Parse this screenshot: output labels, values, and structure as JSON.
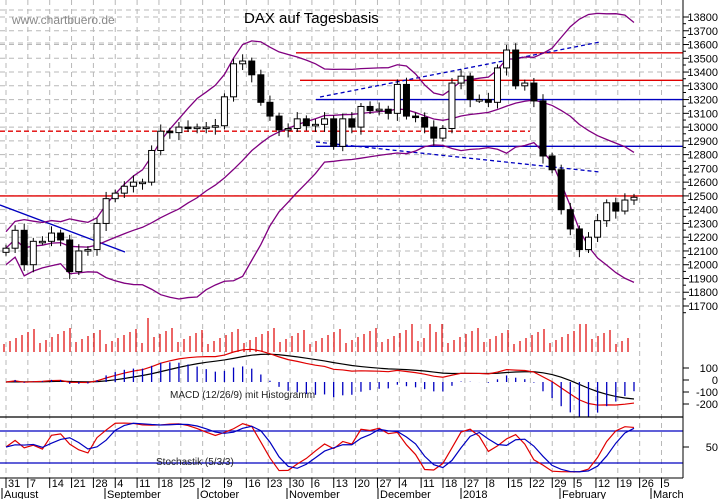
{
  "watermark": "www.chartbuero.de",
  "title": "DAX auf Tagesbasis",
  "chart_data": [
    {
      "type": "candlestick",
      "title": "DAX auf Tagesbasis",
      "ylabel": "",
      "ylim": [
        11650,
        13900
      ],
      "yticks": [
        13800,
        13700,
        13600,
        13500,
        13400,
        13300,
        13200,
        13100,
        13000,
        12900,
        12800,
        12700,
        12600,
        12500,
        12400,
        12300,
        12200,
        12100,
        12000,
        11900,
        11800,
        11700
      ],
      "overlays": [
        "Bollinger Bands (upper, middle, lower)"
      ],
      "horizontal_lines": [
        {
          "level": 13540,
          "color": "#e00000",
          "style": "solid"
        },
        {
          "level": 13340,
          "color": "#e00000",
          "style": "solid"
        },
        {
          "level": 13200,
          "color": "#0000c0",
          "style": "solid"
        },
        {
          "level": 12970,
          "color": "#e00000",
          "style": "dashed"
        },
        {
          "level": 12860,
          "color": "#0000c0",
          "style": "solid"
        },
        {
          "level": 12500,
          "color": "#e00000",
          "style": "solid"
        }
      ],
      "trend_lines": [
        {
          "name": "downtrend August-September",
          "color": "#0000c0",
          "from": [
            "Jul 31",
            12500
          ],
          "to": [
            "Sep 8",
            12160
          ]
        },
        {
          "name": "upper channel Nov-Jan",
          "color": "#0000c0",
          "style": "dashed",
          "from": [
            "Nov 13",
            13200
          ],
          "to": [
            "Jan 26",
            13600
          ]
        },
        {
          "name": "lower channel Nov-Feb",
          "color": "#0000c0",
          "style": "dashed",
          "from": [
            "Nov 13",
            12860
          ],
          "to": [
            "Feb 9",
            12640
          ]
        }
      ],
      "approx_closes": [
        {
          "date": "Jul 31",
          "close": 12120
        },
        {
          "date": "Aug 7",
          "close": 12250
        },
        {
          "date": "Aug 11",
          "close": 12000
        },
        {
          "date": "Aug 14",
          "close": 12170
        },
        {
          "date": "Aug 18",
          "close": 12170
        },
        {
          "date": "Aug 21",
          "close": 12230
        },
        {
          "date": "Aug 25",
          "close": 12180
        },
        {
          "date": "Aug 29",
          "close": 11950
        },
        {
          "date": "Sep 1",
          "close": 12100
        },
        {
          "date": "Sep 4",
          "close": 12110
        },
        {
          "date": "Sep 8",
          "close": 12300
        },
        {
          "date": "Sep 11",
          "close": 12480
        },
        {
          "date": "Sep 15",
          "close": 12520
        },
        {
          "date": "Sep 18",
          "close": 12570
        },
        {
          "date": "Sep 22",
          "close": 12600
        },
        {
          "date": "Sep 25",
          "close": 12600
        },
        {
          "date": "Sep 29",
          "close": 12830
        },
        {
          "date": "Oct 2",
          "close": 12970
        },
        {
          "date": "Oct 6",
          "close": 12960
        },
        {
          "date": "Oct 9",
          "close": 13000
        },
        {
          "date": "Oct 13",
          "close": 12990
        },
        {
          "date": "Oct 16",
          "close": 13000
        },
        {
          "date": "Oct 20",
          "close": 13000
        },
        {
          "date": "Oct 23",
          "close": 13010
        },
        {
          "date": "Oct 27",
          "close": 13220
        },
        {
          "date": "Nov 1",
          "close": 13460
        },
        {
          "date": "Nov 3",
          "close": 13480
        },
        {
          "date": "Nov 7",
          "close": 13380
        },
        {
          "date": "Nov 9",
          "close": 13180
        },
        {
          "date": "Nov 13",
          "close": 13080
        },
        {
          "date": "Nov 15",
          "close": 12980
        },
        {
          "date": "Nov 17",
          "close": 12990
        },
        {
          "date": "Nov 20",
          "close": 13060
        },
        {
          "date": "Nov 23",
          "close": 13010
        },
        {
          "date": "Nov 27",
          "close": 13020
        },
        {
          "date": "Nov 29",
          "close": 13060
        },
        {
          "date": "Dec 1",
          "close": 12860
        },
        {
          "date": "Dec 4",
          "close": 13060
        },
        {
          "date": "Dec 6",
          "close": 13000
        },
        {
          "date": "Dec 8",
          "close": 13150
        },
        {
          "date": "Dec 11",
          "close": 13120
        },
        {
          "date": "Dec 13",
          "close": 13130
        },
        {
          "date": "Dec 15",
          "close": 13100
        },
        {
          "date": "Dec 18",
          "close": 13310
        },
        {
          "date": "Dec 20",
          "close": 13080
        },
        {
          "date": "Dec 22",
          "close": 13070
        },
        {
          "date": "Dec 27",
          "close": 13000
        },
        {
          "date": "Dec 29",
          "close": 12920
        },
        {
          "date": "Jan 3",
          "close": 12990
        },
        {
          "date": "Jan 5",
          "close": 13320
        },
        {
          "date": "Jan 9",
          "close": 13370
        },
        {
          "date": "Jan 11",
          "close": 13200
        },
        {
          "date": "Jan 15",
          "close": 13200
        },
        {
          "date": "Jan 17",
          "close": 13180
        },
        {
          "date": "Jan 19",
          "close": 13430
        },
        {
          "date": "Jan 23",
          "close": 13560
        },
        {
          "date": "Jan 25",
          "close": 13300
        },
        {
          "date": "Jan 29",
          "close": 13320
        },
        {
          "date": "Jan 31",
          "close": 13190
        },
        {
          "date": "Feb 2",
          "close": 12790
        },
        {
          "date": "Feb 5",
          "close": 12690
        },
        {
          "date": "Feb 6",
          "close": 12400
        },
        {
          "date": "Feb 8",
          "close": 12260
        },
        {
          "date": "Feb 9",
          "close": 12110
        },
        {
          "date": "Feb 12",
          "close": 12200
        },
        {
          "date": "Feb 14",
          "close": 12320
        },
        {
          "date": "Feb 16",
          "close": 12450
        },
        {
          "date": "Feb 19",
          "close": 12390
        },
        {
          "date": "Feb 21",
          "close": 12470
        },
        {
          "date": "Feb 23",
          "close": 12490
        }
      ]
    },
    {
      "type": "bar",
      "title": "Volume",
      "color": "#e00000",
      "note": "unlabeled volume histogram beneath price panel"
    },
    {
      "type": "line",
      "title": "MACD (12/26/9) mit Histogramm",
      "yticks": [
        100,
        0,
        -100,
        -200
      ],
      "series": [
        {
          "name": "MACD",
          "color": "#e00000"
        },
        {
          "name": "Signal",
          "color": "#000000"
        },
        {
          "name": "Histogram",
          "color": "#0000c0",
          "kind": "bar"
        }
      ]
    },
    {
      "type": "line",
      "title": "Stochastik (5/3/3)",
      "yticks": [
        50
      ],
      "reference_lines": [
        80,
        20
      ],
      "series": [
        {
          "name": "%K",
          "color": "#e00000"
        },
        {
          "name": "%D",
          "color": "#0000c0"
        }
      ]
    }
  ],
  "x_axis": {
    "day_ticks": [
      "31",
      "7",
      "14",
      "21",
      "28",
      "4",
      "11",
      "18",
      "25",
      "2",
      "9",
      "16",
      "23",
      "30",
      "6",
      "13",
      "20",
      "27",
      "4",
      "11",
      "18",
      "27",
      "8",
      "15",
      "22",
      "29",
      "5",
      "12",
      "19",
      "26",
      "5"
    ],
    "month_labels": [
      "August",
      "September",
      "October",
      "November",
      "December",
      "2018",
      "February",
      "March"
    ]
  },
  "y_axis": {
    "price_labels": [
      "13800",
      "13700",
      "13600",
      "13500",
      "13400",
      "13300",
      "13200",
      "13100",
      "13000",
      "12900",
      "12800",
      "12700",
      "12600",
      "12500",
      "12400",
      "12300",
      "12200",
      "12100",
      "12000",
      "11900",
      "11800",
      "11700"
    ],
    "macd_labels": [
      "100",
      "0",
      "-100",
      "-200"
    ],
    "stoch_labels": [
      "50"
    ]
  },
  "indicators": {
    "macd_label": "MACD (12/26/9) mit Histogramm",
    "stoch_label": "Stochastik (5/3/3)"
  },
  "colors": {
    "resistance": "#e00000",
    "support": "#0000c0",
    "bollinger": "#800080",
    "candle": "#000000",
    "grid": "#b8b8b8"
  }
}
